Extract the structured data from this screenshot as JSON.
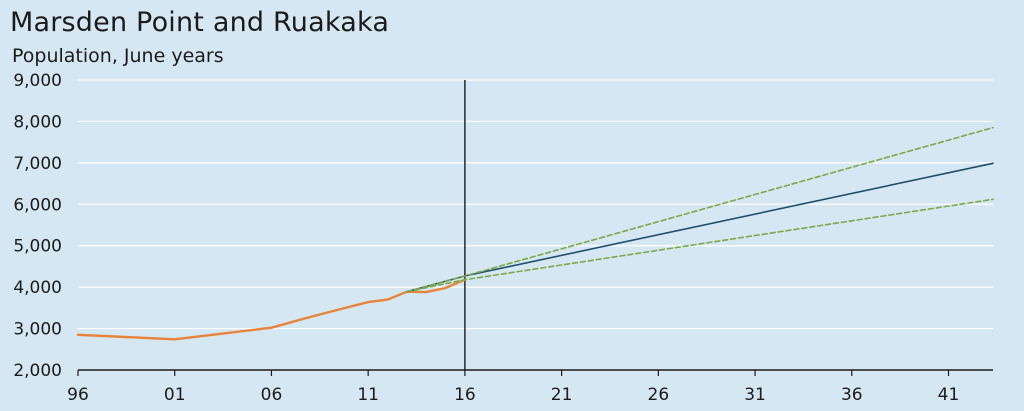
{
  "chart_data": {
    "type": "line",
    "title": "Marsden Point and Ruakaka",
    "subtitle": "Population, June years",
    "xlabel": "",
    "ylabel": "",
    "xlim": [
      1996,
      2043.3
    ],
    "ylim": [
      2000,
      9000
    ],
    "x_ticks": [
      1996,
      2001,
      2006,
      2011,
      2016,
      2021,
      2026,
      2031,
      2036,
      2041
    ],
    "x_tick_labels": [
      "96",
      "01",
      "06",
      "11",
      "16",
      "21",
      "26",
      "31",
      "36",
      "41"
    ],
    "y_ticks": [
      2000,
      3000,
      4000,
      5000,
      6000,
      7000,
      8000,
      9000
    ],
    "y_tick_labels": [
      "2,000",
      "3,000",
      "4,000",
      "5,000",
      "6,000",
      "7,000",
      "8,000",
      "9,000"
    ],
    "grid": true,
    "reference_line_x": 2016,
    "series": [
      {
        "style": "solid",
        "color": "#e8833a",
        "x": [
          1996,
          2001,
          2006,
          2008,
          2010,
          2011,
          2012,
          2013,
          2014,
          2015,
          2016
        ],
        "values": [
          2850,
          2740,
          3020,
          3280,
          3520,
          3640,
          3700,
          3890,
          3880,
          3980,
          4180
        ]
      },
      {
        "style": "solid",
        "color": "#1f4e6b",
        "x": [
          2013,
          2016,
          2043.3
        ],
        "values": [
          3890,
          4270,
          6990
        ]
      },
      {
        "style": "dashed",
        "color": "#7aa84a",
        "x": [
          2013,
          2016,
          2043.3
        ],
        "values": [
          3890,
          4270,
          7850
        ]
      },
      {
        "style": "dashed",
        "color": "#7aa84a",
        "x": [
          2013,
          2016,
          2043.3
        ],
        "values": [
          3890,
          4180,
          6120
        ]
      }
    ]
  }
}
